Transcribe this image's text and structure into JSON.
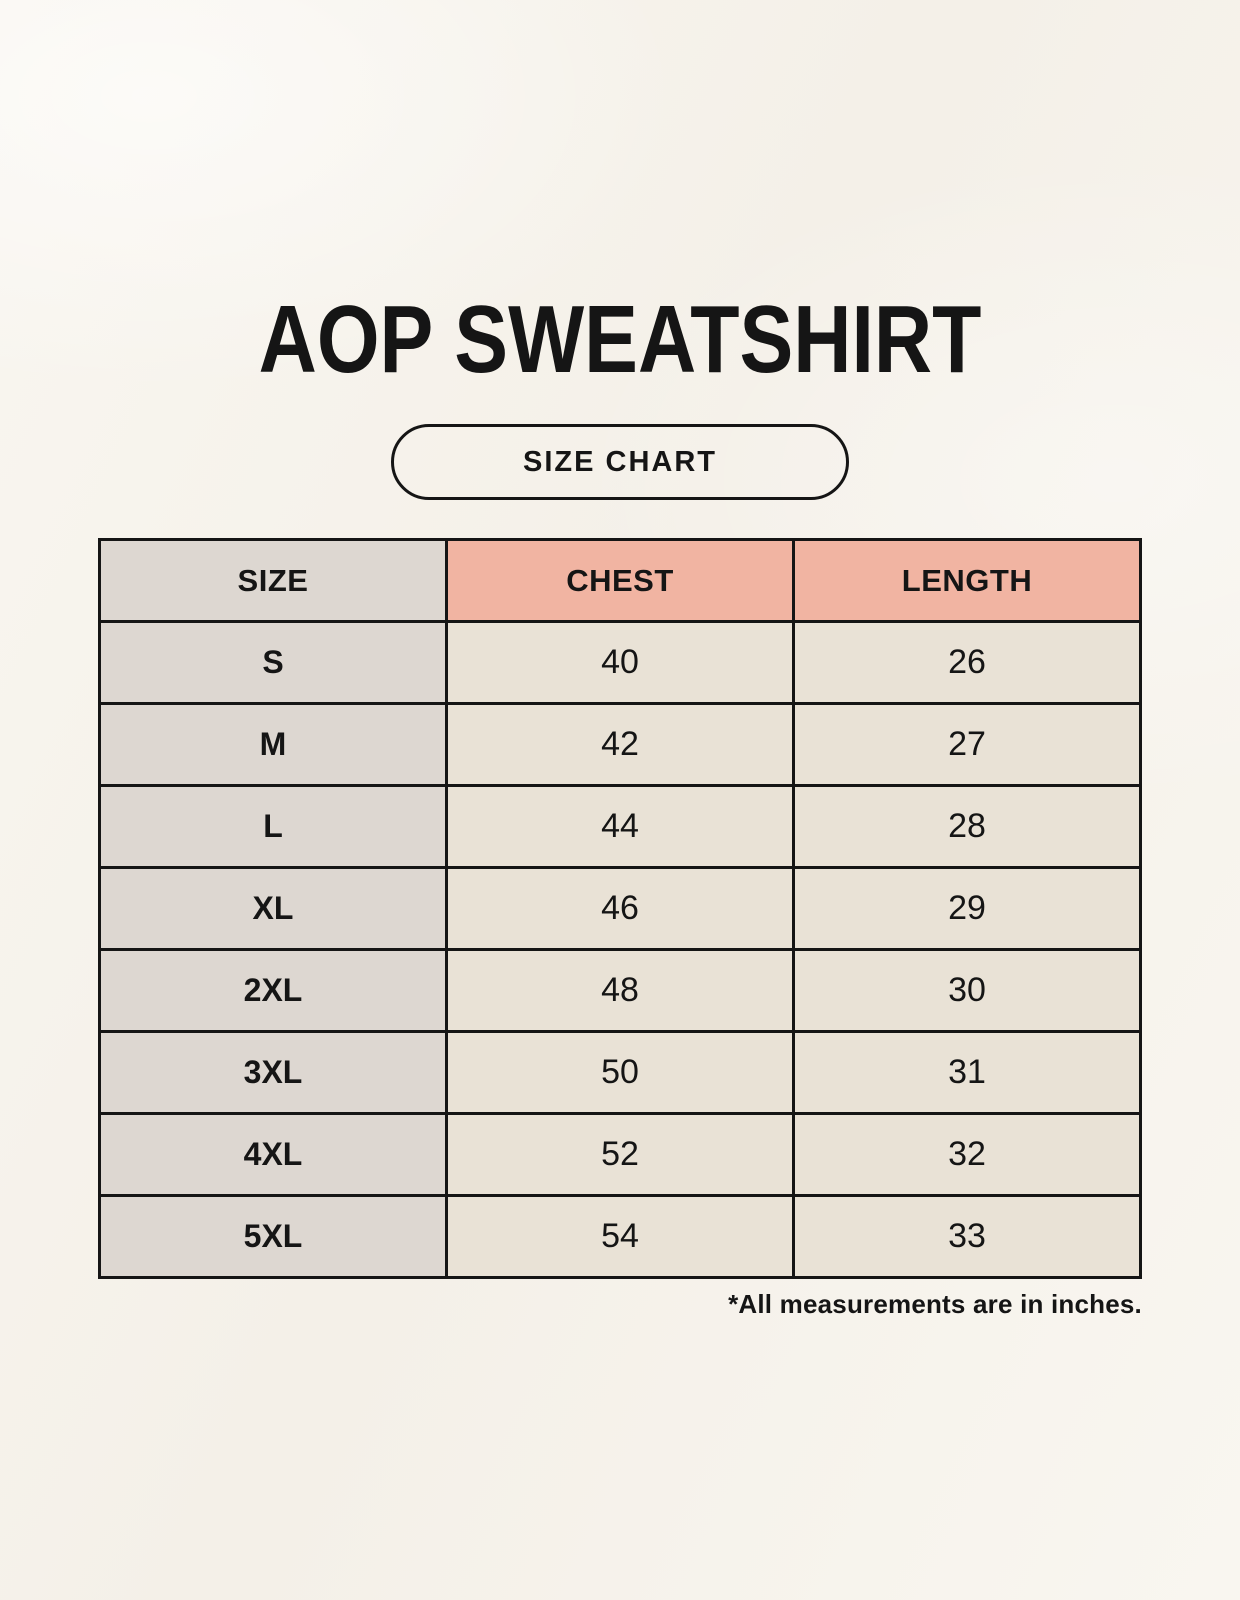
{
  "title": "AOP SWEATSHIRT",
  "badge_label": "SIZE CHART",
  "footnote": "*All measurements are in inches.",
  "table": {
    "columns": [
      "SIZE",
      "CHEST",
      "LENGTH"
    ],
    "rows": [
      {
        "size": "S",
        "chest": "40",
        "length": "26"
      },
      {
        "size": "M",
        "chest": "42",
        "length": "27"
      },
      {
        "size": "L",
        "chest": "44",
        "length": "28"
      },
      {
        "size": "XL",
        "chest": "46",
        "length": "29"
      },
      {
        "size": "2XL",
        "chest": "48",
        "length": "30"
      },
      {
        "size": "3XL",
        "chest": "50",
        "length": "31"
      },
      {
        "size": "4XL",
        "chest": "52",
        "length": "32"
      },
      {
        "size": "5XL",
        "chest": "54",
        "length": "33"
      }
    ]
  },
  "colors": {
    "background": "#f8f5ef",
    "text": "#151515",
    "border": "#151515",
    "row_label_bg": "#ddd7d1",
    "header_measure_bg": "#f1b4a2",
    "cell_bg": "#e9e2d6"
  },
  "chart_data": {
    "type": "table",
    "title": "AOP SWEATSHIRT",
    "subtitle": "SIZE CHART",
    "columns": [
      "SIZE",
      "CHEST",
      "LENGTH"
    ],
    "rows": [
      [
        "S",
        40,
        26
      ],
      [
        "M",
        42,
        27
      ],
      [
        "L",
        44,
        28
      ],
      [
        "XL",
        46,
        29
      ],
      [
        "2XL",
        48,
        30
      ],
      [
        "3XL",
        50,
        31
      ],
      [
        "4XL",
        52,
        32
      ],
      [
        "5XL",
        54,
        33
      ]
    ],
    "units": "inches",
    "note": "*All measurements are in inches."
  }
}
